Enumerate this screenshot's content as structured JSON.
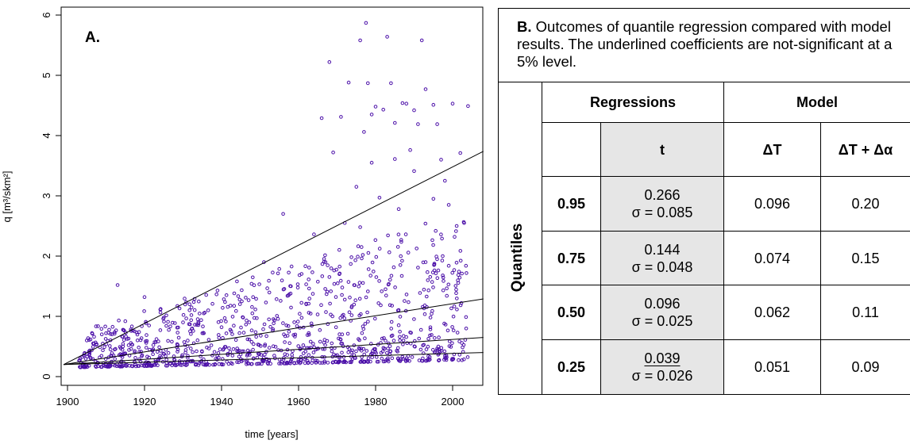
{
  "chart_data": {
    "type": "scatter",
    "panel_label": "A.",
    "xlabel": "time [years]",
    "ylabel": "q [m³/skm²]",
    "xlim": [
      1900,
      2008
    ],
    "ylim": [
      0,
      6
    ],
    "xticks": [
      1900,
      1920,
      1940,
      1960,
      1980,
      2000
    ],
    "yticks": [
      0,
      1,
      2,
      3,
      4,
      5,
      6
    ],
    "point_color": "#4b0fa8",
    "regression_lines": [
      {
        "quantile": 0.95,
        "x": [
          1899,
          2008
        ],
        "y": [
          0.2,
          3.74
        ]
      },
      {
        "quantile": 0.75,
        "x": [
          1899,
          2008
        ],
        "y": [
          0.2,
          1.29
        ]
      },
      {
        "quantile": 0.5,
        "x": [
          1899,
          2008
        ],
        "y": [
          0.2,
          0.65
        ]
      },
      {
        "quantile": 0.25,
        "x": [
          1899,
          2008
        ],
        "y": [
          0.2,
          0.4
        ]
      }
    ],
    "series": [
      {
        "values": [
          [
            1977.5,
            5.87
          ],
          [
            1976,
            5.58
          ],
          [
            1983,
            5.64
          ],
          [
            1992,
            5.58
          ],
          [
            1968,
            5.22
          ],
          [
            1973,
            4.88
          ],
          [
            1978,
            4.87
          ],
          [
            1984,
            4.87
          ],
          [
            1993,
            4.77
          ],
          [
            1995,
            4.51
          ],
          [
            2000,
            4.53
          ],
          [
            2004,
            4.49
          ],
          [
            1966,
            4.29
          ],
          [
            1971,
            4.31
          ],
          [
            1987,
            4.54
          ],
          [
            1988,
            4.53
          ],
          [
            1979,
            4.35
          ],
          [
            1980,
            4.48
          ],
          [
            1982,
            4.43
          ],
          [
            1990,
            4.42
          ],
          [
            1991,
            4.19
          ],
          [
            1985,
            4.21
          ],
          [
            1977,
            4.06
          ],
          [
            1996,
            4.19
          ],
          [
            1956,
            2.7
          ],
          [
            1951,
            1.9
          ],
          [
            1944,
            1.58
          ],
          [
            1913,
            1.52
          ],
          [
            1920,
            1.32
          ],
          [
            1933,
            1.29
          ],
          [
            1969,
            3.72
          ],
          [
            1989,
            3.76
          ],
          [
            1997,
            3.6
          ],
          [
            2002,
            3.71
          ],
          [
            1985,
            3.61
          ],
          [
            1979,
            3.55
          ],
          [
            1990,
            3.41
          ],
          [
            1975,
            3.15
          ],
          [
            1998,
            3.25
          ],
          [
            1981,
            2.97
          ],
          [
            1995,
            2.95
          ],
          [
            1999,
            2.85
          ],
          [
            2003,
            2.55
          ],
          [
            1986,
            2.78
          ],
          [
            1972,
            2.55
          ],
          [
            1976,
            2.48
          ],
          [
            1964,
            2.36
          ],
          [
            1967,
            1.9
          ],
          [
            1958,
            1.5
          ],
          [
            1962,
            1.2
          ],
          [
            1915,
            0.92
          ],
          [
            1925,
            0.98
          ],
          [
            1930,
            0.9
          ],
          [
            1940,
            0.82
          ],
          [
            1948,
            1.05
          ],
          [
            1910,
            0.72
          ],
          [
            1905,
            0.6
          ],
          [
            1935,
            0.72
          ]
        ]
      }
    ]
  },
  "table": {
    "caption_bold": "B.",
    "caption_rest": " Outcomes of quantile regression compared with model results. The underlined coefficients are not-significant at a 5% level.",
    "group_label": "Quantiles",
    "header_regressions": "Regressions",
    "header_model": "Model",
    "col_t": "t",
    "col_dT": "ΔT",
    "col_dTda": "ΔT + Δα",
    "rows": [
      {
        "q": "0.95",
        "t": "0.266",
        "sigma": "σ = 0.085",
        "dT": "0.096",
        "dTda": "0.20"
      },
      {
        "q": "0.75",
        "t": "0.144",
        "sigma": "σ = 0.048",
        "dT": "0.074",
        "dTda": "0.15"
      },
      {
        "q": "0.50",
        "t": "0.096",
        "sigma": "σ = 0.025",
        "dT": "0.062",
        "dTda": "0.11"
      },
      {
        "q": "0.25",
        "t": "0.039",
        "sigma": "σ = 0.026",
        "dT": "0.051",
        "dTda": "0.09"
      }
    ]
  }
}
